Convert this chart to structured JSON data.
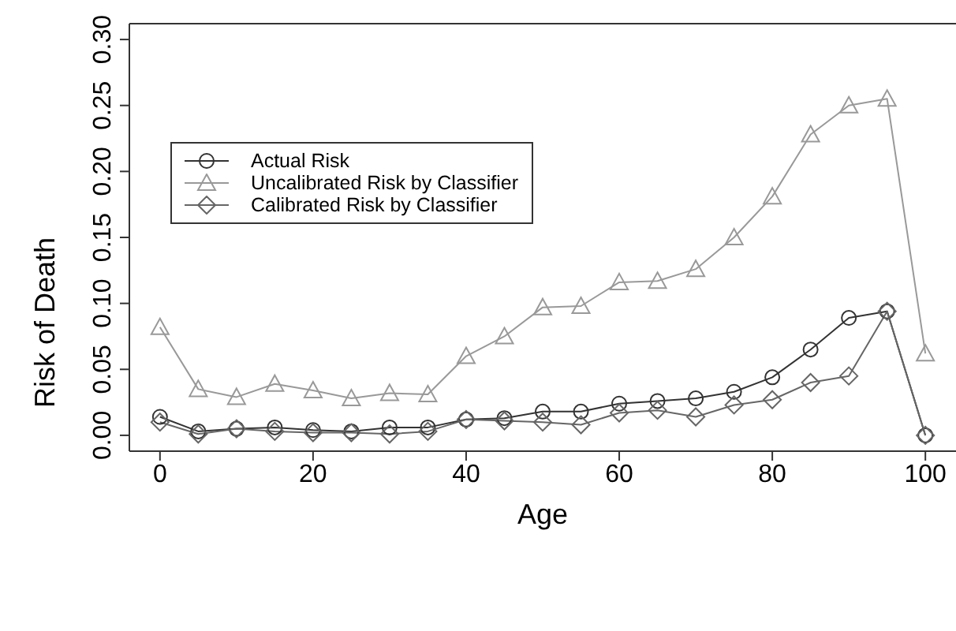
{
  "chart_data": {
    "type": "line",
    "xlabel": "Age",
    "ylabel": "Risk of Death",
    "x": [
      0,
      5,
      10,
      15,
      20,
      25,
      30,
      35,
      40,
      45,
      50,
      55,
      60,
      65,
      70,
      75,
      80,
      85,
      90,
      95,
      100
    ],
    "series": [
      {
        "name": "Actual Risk",
        "color": "#333333",
        "marker": "circle",
        "values": [
          0.014,
          0.003,
          0.005,
          0.006,
          0.004,
          0.003,
          0.006,
          0.006,
          0.012,
          0.013,
          0.018,
          0.018,
          0.024,
          0.026,
          0.028,
          0.033,
          0.044,
          0.065,
          0.089,
          0.094,
          0.0
        ]
      },
      {
        "name": "Uncalibrated Risk by Classifier",
        "color": "#999999",
        "marker": "triangle",
        "values": [
          0.082,
          0.035,
          0.029,
          0.039,
          0.034,
          0.028,
          0.032,
          0.031,
          0.06,
          0.075,
          0.097,
          0.098,
          0.116,
          0.117,
          0.126,
          0.15,
          0.181,
          0.228,
          0.25,
          0.255,
          0.062
        ]
      },
      {
        "name": "Calibrated Risk by Classifier",
        "color": "#666666",
        "marker": "diamond",
        "values": [
          0.01,
          0.001,
          0.005,
          0.003,
          0.002,
          0.002,
          0.001,
          0.003,
          0.012,
          0.011,
          0.01,
          0.008,
          0.017,
          0.019,
          0.014,
          0.023,
          0.027,
          0.04,
          0.045,
          0.094,
          0.0
        ]
      }
    ],
    "xlim": [
      -4,
      104
    ],
    "xticks": [
      0,
      20,
      40,
      60,
      80,
      100
    ],
    "ylim": [
      -0.012,
      0.312
    ],
    "yticks": [
      {
        "value": 0,
        "label": "0.00"
      },
      {
        "value": 0.05,
        "label": "0.05"
      },
      {
        "value": 0.1,
        "label": "0.10"
      },
      {
        "value": 0.15,
        "label": "0.15"
      },
      {
        "value": 0.2,
        "label": "0.20"
      },
      {
        "value": 0.25,
        "label": "0.25"
      },
      {
        "value": 0.3,
        "label": "0.30"
      }
    ],
    "grid": false,
    "legend": "top left",
    "line_style": "solid"
  }
}
